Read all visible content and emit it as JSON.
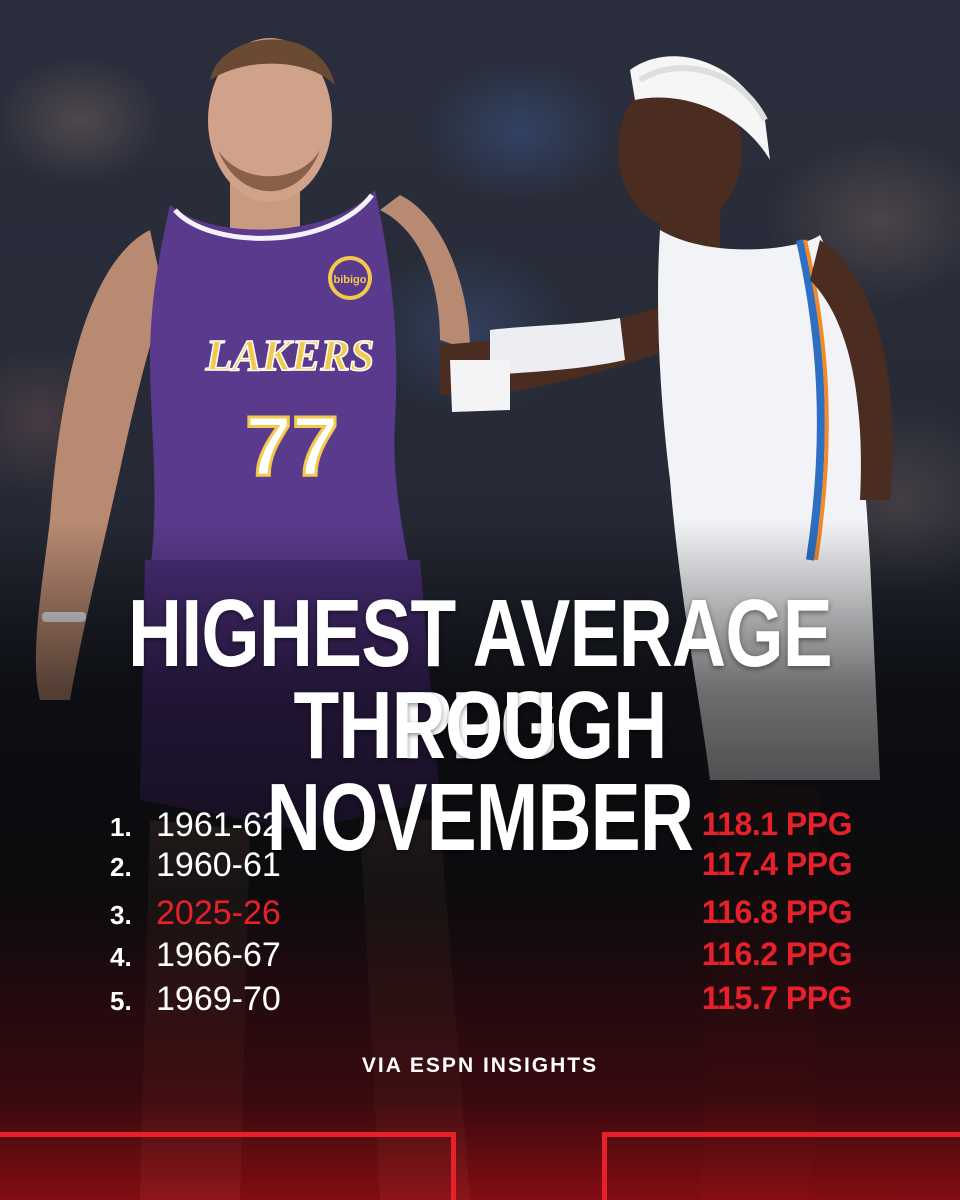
{
  "title": {
    "line1": "HIGHEST AVERAGE PPG",
    "line2": "THROUGH NOVEMBER"
  },
  "rankings": [
    {
      "rank": "1.",
      "season": "1961-62",
      "value": "118.1 PPG",
      "highlight": false
    },
    {
      "rank": "2.",
      "season": "1960-61",
      "value": "117.4 PPG",
      "highlight": false
    },
    {
      "rank": "3.",
      "season": "2025-26",
      "value": "116.8 PPG",
      "highlight": true
    },
    {
      "rank": "4.",
      "season": "1966-67",
      "value": "116.2 PPG",
      "highlight": false
    },
    {
      "rank": "5.",
      "season": "1969-70",
      "value": "115.7 PPG",
      "highlight": false
    }
  ],
  "source": "VIA ESPN INSIGHTS",
  "photo": {
    "left_jersey": {
      "team": "LAKERS",
      "number": "77",
      "sponsor": "bibigo"
    }
  },
  "colors": {
    "accent_red": "#e8202a",
    "text_white": "#ffffff",
    "lakers_purple": "#5a3a8c",
    "lakers_gold": "#f2c94c"
  }
}
